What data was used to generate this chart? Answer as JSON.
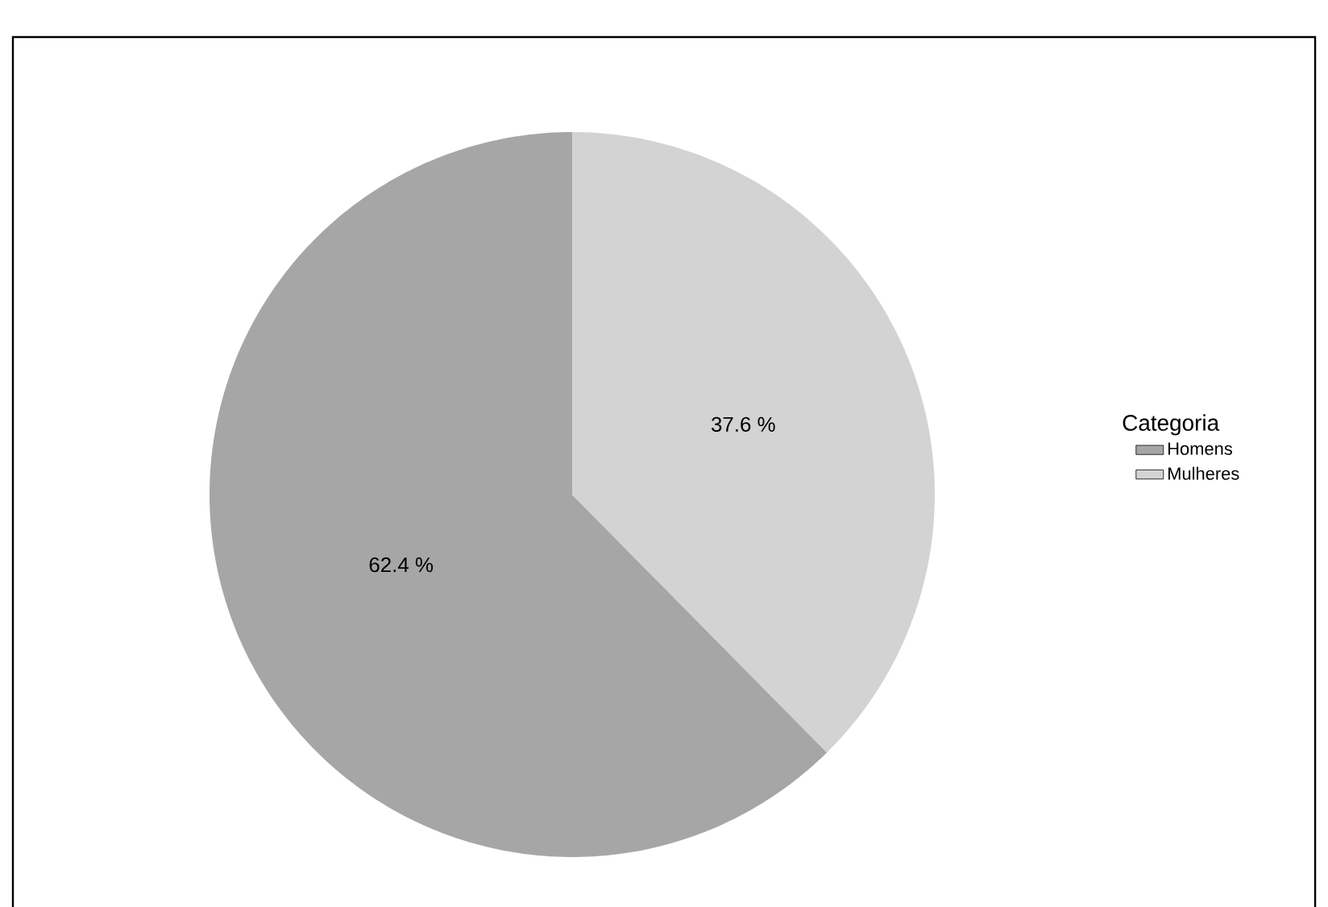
{
  "chart_data": {
    "type": "pie",
    "legend_title": "Categoria",
    "legend": "right",
    "categories": [
      "Homens",
      "Mulheres"
    ],
    "values": [
      62.4,
      37.6
    ],
    "colors": [
      "#a6a6a6",
      "#d3d3d3"
    ],
    "value_labels": [
      "62.4 %",
      "37.6 %"
    ]
  }
}
